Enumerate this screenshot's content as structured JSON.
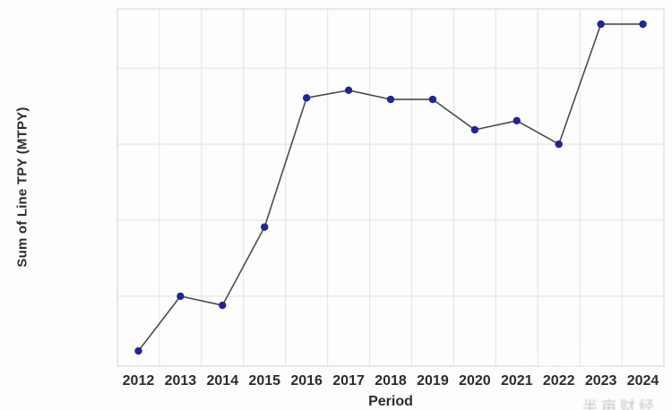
{
  "axes": {
    "x_label": "Period",
    "y_label": "Sum of Line TPY (MTPY)"
  },
  "chart_data": {
    "type": "line",
    "title": "",
    "xlabel": "Period",
    "ylabel": "Sum of Line TPY (MTPY)",
    "categories": [
      "2012",
      "2013",
      "2014",
      "2015",
      "2016",
      "2017",
      "2018",
      "2019",
      "2020",
      "2021",
      "2022",
      "2023",
      "2024"
    ],
    "values": [
      0.28,
      1.0,
      0.88,
      1.91,
      3.61,
      3.71,
      3.59,
      3.59,
      3.19,
      3.31,
      3.0,
      4.58,
      4.58
    ],
    "y_units": "relative (y-axis shows no numeric tick labels in the image)",
    "ylim": [
      0.08,
      4.78
    ],
    "y_gridline_values": [
      1,
      2,
      3,
      4
    ],
    "grid": true,
    "legend": false,
    "marker": "circle",
    "colors": {
      "marker": "#232399",
      "line": "#4b4b4b",
      "grid": "#e6e5ea",
      "frame": "#dddce1",
      "tick_label": "#2b2b2b",
      "axis_label": "#2b2b2b",
      "background": "#fdfdfd"
    }
  },
  "watermark": {
    "white_overlay_text": "半亩财经",
    "brand_text": "半亩财经"
  }
}
